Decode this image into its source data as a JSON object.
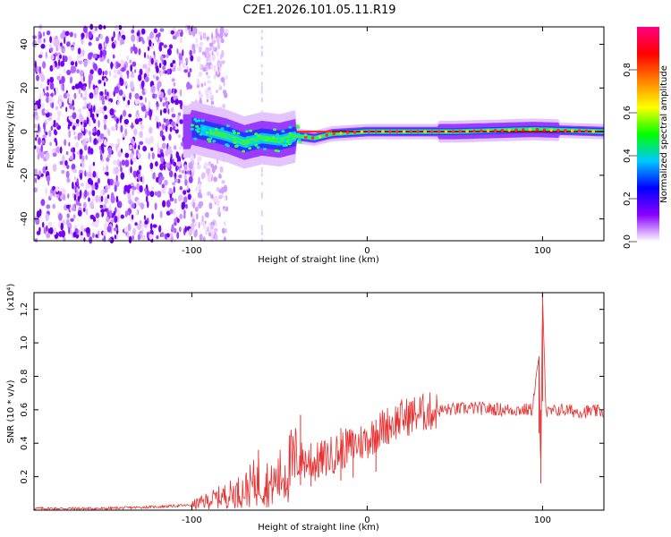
{
  "title": "C2E1.2026.101.05.11.R19",
  "chart_data": [
    {
      "type": "heatmap",
      "name": "spectrogram",
      "xlabel": "Height of straight line (km)",
      "ylabel": "Frequency (Hz)",
      "xlim": [
        -190,
        135
      ],
      "ylim": [
        -50,
        48
      ],
      "xticks": [
        -100,
        0,
        100
      ],
      "xtick_labels": [
        "-100",
        "0",
        "100"
      ],
      "yticks": [
        -40,
        -20,
        0,
        20,
        40
      ],
      "ytick_labels": [
        "-40",
        "-20",
        "0",
        "20",
        "40"
      ],
      "description_series": {
        "noise_region_km": [
          -190,
          -90
        ],
        "centre_line_hz": [
          {
            "x": -100,
            "y": 2
          },
          {
            "x": -80,
            "y": -2
          },
          {
            "x": -70,
            "y": -5
          },
          {
            "x": -60,
            "y": -3
          },
          {
            "x": -50,
            "y": -4
          },
          {
            "x": -40,
            "y": -2
          },
          {
            "x": -30,
            "y": -3
          },
          {
            "x": -20,
            "y": -1
          },
          {
            "x": 0,
            "y": 0
          },
          {
            "x": 50,
            "y": 0
          },
          {
            "x": 95,
            "y": 1
          },
          {
            "x": 135,
            "y": 0
          }
        ]
      }
    },
    {
      "type": "colorbar",
      "name": "amplitude-colorbar",
      "label": "Normalized spectral amplitude",
      "range": [
        0,
        1
      ],
      "ticks": [
        0.0,
        0.2,
        0.4,
        0.6,
        0.8
      ],
      "tick_labels": [
        "0.0",
        "0.2",
        "0.4",
        "0.6",
        "0.8"
      ],
      "colors": [
        "#ffffff",
        "#8a00ff",
        "#0000ff",
        "#00c8ff",
        "#00ff00",
        "#ffff00",
        "#ff8000",
        "#ff0000",
        "#ff0080"
      ]
    },
    {
      "type": "line",
      "name": "snr",
      "xlabel": "Height of straight line (km)",
      "ylabel": "SNR (10 * v/v)",
      "scale_label": "(x10⁴)",
      "xlim": [
        -190,
        135
      ],
      "ylim": [
        0,
        1.3
      ],
      "xticks": [
        -100,
        0,
        100
      ],
      "xtick_labels": [
        "-100",
        "0",
        "100"
      ],
      "yticks": [
        0.2,
        0.4,
        0.6,
        0.8,
        1.0,
        1.2
      ],
      "ytick_labels": [
        "0.2",
        "0.4",
        "0.6",
        "0.8",
        "1.0",
        "1.2"
      ],
      "series": [
        {
          "name": "SNR",
          "color": "#e83030",
          "points": [
            {
              "x": -190,
              "y": 0.01
            },
            {
              "x": -150,
              "y": 0.01
            },
            {
              "x": -120,
              "y": 0.02
            },
            {
              "x": -100,
              "y": 0.03
            },
            {
              "x": -90,
              "y": 0.06
            },
            {
              "x": -80,
              "y": 0.09
            },
            {
              "x": -70,
              "y": 0.12
            },
            {
              "x": -62,
              "y": 0.18
            },
            {
              "x": -55,
              "y": 0.14
            },
            {
              "x": -45,
              "y": 0.25
            },
            {
              "x": -38,
              "y": 0.3
            },
            {
              "x": -30,
              "y": 0.28
            },
            {
              "x": -20,
              "y": 0.33
            },
            {
              "x": -10,
              "y": 0.38
            },
            {
              "x": 0,
              "y": 0.42
            },
            {
              "x": 10,
              "y": 0.5
            },
            {
              "x": 20,
              "y": 0.55
            },
            {
              "x": 30,
              "y": 0.58
            },
            {
              "x": 45,
              "y": 0.6
            },
            {
              "x": 60,
              "y": 0.61
            },
            {
              "x": 80,
              "y": 0.6
            },
            {
              "x": 94,
              "y": 0.6
            },
            {
              "x": 98,
              "y": 0.92
            },
            {
              "x": 99,
              "y": 0.16
            },
            {
              "x": 100,
              "y": 1.3
            },
            {
              "x": 102,
              "y": 0.58
            },
            {
              "x": 110,
              "y": 0.6
            },
            {
              "x": 120,
              "y": 0.59
            },
            {
              "x": 135,
              "y": 0.59
            }
          ],
          "spikes": [
            {
              "x": -62,
              "y": 0.36
            },
            {
              "x": -57,
              "y": 0.28
            },
            {
              "x": -38,
              "y": 0.57
            },
            {
              "x": -32,
              "y": 0.4
            },
            {
              "x": -15,
              "y": 0.49
            },
            {
              "x": -8,
              "y": 0.46
            },
            {
              "x": 5,
              "y": 0.54
            },
            {
              "x": 98,
              "y": 0.92
            },
            {
              "x": 100,
              "y": 1.3
            }
          ]
        }
      ]
    }
  ]
}
